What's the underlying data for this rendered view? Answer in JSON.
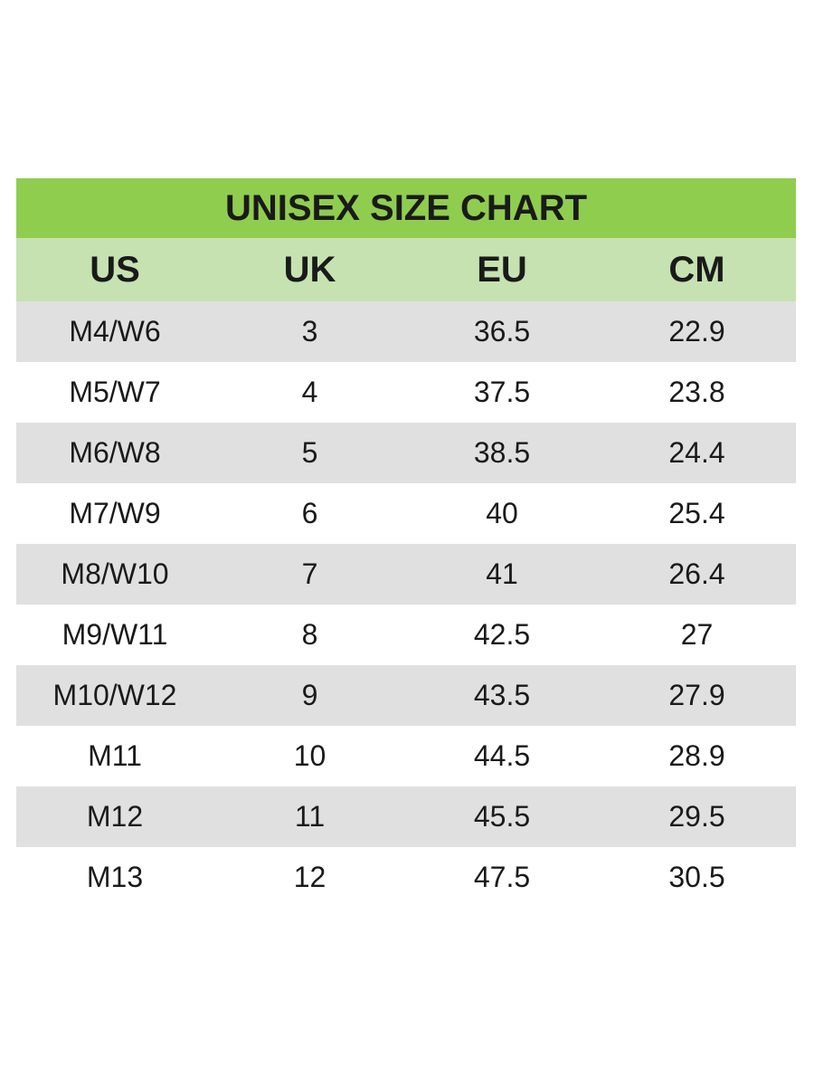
{
  "chart_data": {
    "type": "table",
    "title": "UNISEX SIZE CHART",
    "columns": [
      "US",
      "UK",
      "EU",
      "CM"
    ],
    "rows": [
      [
        "M4/W6",
        "3",
        "36.5",
        "22.9"
      ],
      [
        "M5/W7",
        "4",
        "37.5",
        "23.8"
      ],
      [
        "M6/W8",
        "5",
        "38.5",
        "24.4"
      ],
      [
        "M7/W9",
        "6",
        "40",
        "25.4"
      ],
      [
        "M8/W10",
        "7",
        "41",
        "26.4"
      ],
      [
        "M9/W11",
        "8",
        "42.5",
        "27"
      ],
      [
        "M10/W12",
        "9",
        "43.5",
        "27.9"
      ],
      [
        "M11",
        "10",
        "44.5",
        "28.9"
      ],
      [
        "M12",
        "11",
        "45.5",
        "29.5"
      ],
      [
        "M13",
        "12",
        "47.5",
        "30.5"
      ]
    ]
  },
  "colors": {
    "title_bg": "#8fcd4f",
    "header_bg": "#c6e2b0",
    "shaded_row_bg": "#e0e0e0",
    "row_bg": "#ffffff",
    "text": "#1a1a1a"
  }
}
